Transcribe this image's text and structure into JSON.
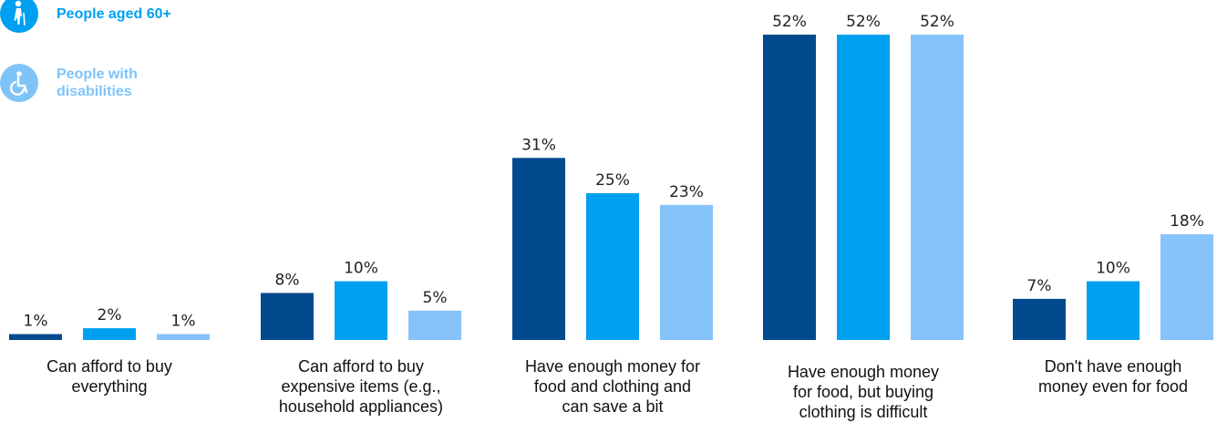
{
  "legend": [
    {
      "label": "People aged 60+",
      "color": "#00A0F0",
      "icon": "elderly-person-icon"
    },
    {
      "label": "People with\ndisabilities",
      "color": "#7FC4F9",
      "icon": "wheelchair-icon"
    }
  ],
  "chart_data": {
    "type": "bar",
    "categories": [
      "Can afford to buy\neverything",
      "Can afford to buy\nexpensive items (e.g.,\nhousehold appliances)",
      "Have enough money for\nfood and clothing and\ncan save a bit",
      "Have enough money\nfor food, but buying\nclothing is difficult",
      "Don't have enough\nmoney even for food"
    ],
    "series": [
      {
        "color": "#024A8E",
        "values": [
          1,
          8,
          31,
          52,
          7
        ],
        "labels": [
          "1%",
          "8%",
          "31%",
          "52%",
          "7%"
        ]
      },
      {
        "name": "People aged 60+",
        "color": "#00A0F0",
        "values": [
          2,
          10,
          25,
          52,
          10
        ],
        "labels": [
          "2%",
          "10%",
          "25%",
          "52%",
          "10%"
        ]
      },
      {
        "name": "People with disabilities",
        "color": "#85C3FA",
        "values": [
          1,
          5,
          23,
          52,
          18
        ],
        "labels": [
          "1%",
          "5%",
          "23%",
          "52%",
          "18%"
        ]
      }
    ],
    "ylim": [
      0,
      52
    ],
    "grid": false,
    "legend_position": "top-left"
  }
}
